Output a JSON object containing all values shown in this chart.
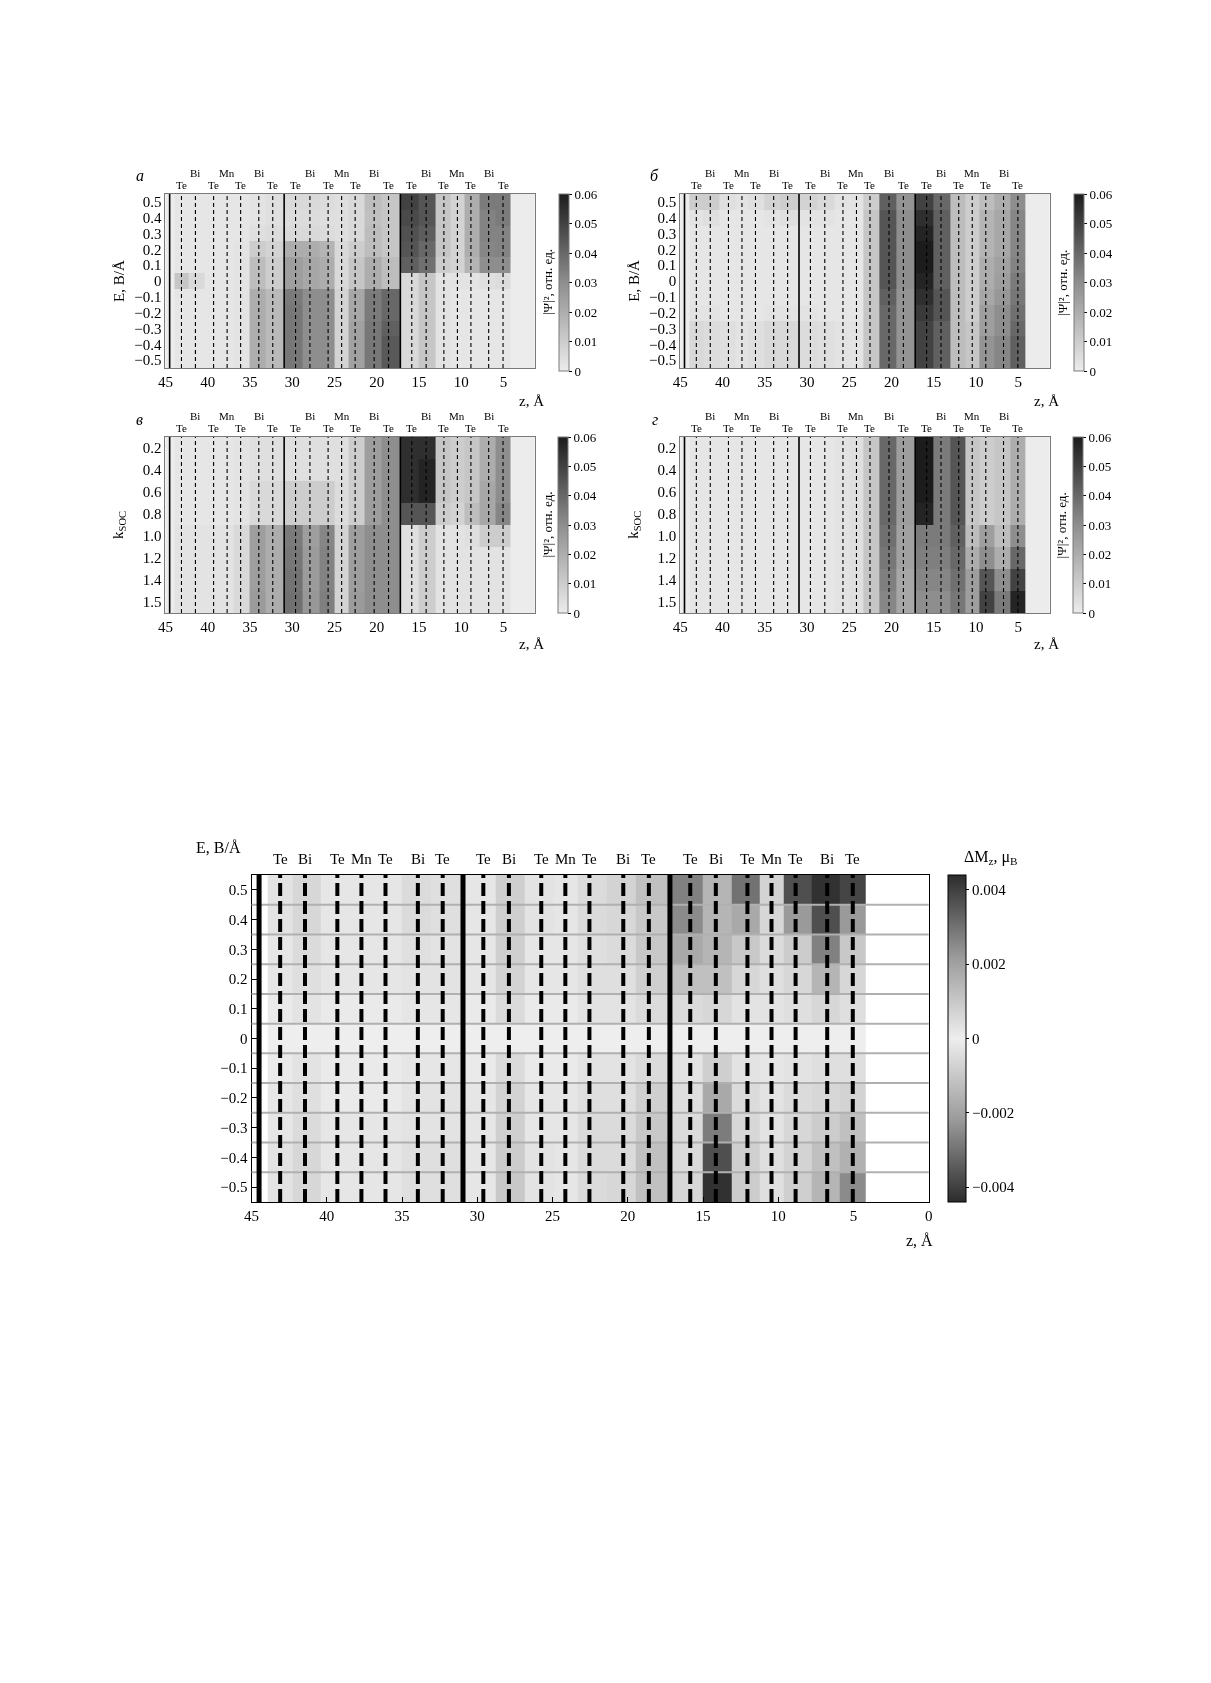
{
  "chart_data": [
    {
      "type": "heatmap",
      "title": "а",
      "xlabel": "z, Å",
      "ylabel": "E, В/Å",
      "clabel": "|Ψ|², отн. ед.",
      "x": [
        43.1,
        41.45,
        39.3,
        37.7,
        36.1,
        33.95,
        32.3,
        29.6,
        27.9,
        25.75,
        24.15,
        22.55,
        20.3,
        18.6,
        15.85,
        14.15,
        12.05,
        10.45,
        8.85,
        6.75,
        5.05
      ],
      "xlim": [
        45,
        1.3
      ],
      "xticks": [
        45,
        40,
        35,
        30,
        25,
        20,
        15,
        10,
        5
      ],
      "y_categories": [
        "0.5",
        "0.4",
        "0.3",
        "0.2",
        "0.1",
        "0",
        "−0.1",
        "−0.2",
        "−0.3",
        "−0.4",
        "−0.5"
      ],
      "cells": [
        [
          0.002,
          0.002,
          0.002,
          0.002,
          0.002,
          0.003,
          0.004,
          0.006,
          0.006,
          0.005,
          0.004,
          0.006,
          0.015,
          0.012,
          0.05,
          0.045,
          0.012,
          0.008,
          0.02,
          0.035,
          0.035
        ],
        [
          0.002,
          0.002,
          0.002,
          0.002,
          0.002,
          0.003,
          0.004,
          0.005,
          0.005,
          0.004,
          0.004,
          0.006,
          0.014,
          0.012,
          0.048,
          0.045,
          0.012,
          0.008,
          0.02,
          0.033,
          0.035
        ],
        [
          0.002,
          0.002,
          0.002,
          0.002,
          0.002,
          0.004,
          0.005,
          0.006,
          0.006,
          0.005,
          0.004,
          0.006,
          0.015,
          0.012,
          0.046,
          0.043,
          0.012,
          0.008,
          0.02,
          0.033,
          0.033
        ],
        [
          0.002,
          0.002,
          0.002,
          0.002,
          0.003,
          0.01,
          0.008,
          0.02,
          0.02,
          0.018,
          0.006,
          0.01,
          0.015,
          0.012,
          0.045,
          0.04,
          0.012,
          0.008,
          0.02,
          0.032,
          0.033
        ],
        [
          0.002,
          0.002,
          0.002,
          0.002,
          0.003,
          0.015,
          0.01,
          0.025,
          0.022,
          0.02,
          0.006,
          0.012,
          0.02,
          0.015,
          0.042,
          0.038,
          0.01,
          0.008,
          0.018,
          0.03,
          0.03
        ],
        [
          0.012,
          0.006,
          0.002,
          0.002,
          0.003,
          0.015,
          0.01,
          0.025,
          0.022,
          0.02,
          0.006,
          0.012,
          0.02,
          0.015,
          0.006,
          0.012,
          0.003,
          0.003,
          0.003,
          0.004,
          0.005
        ],
        [
          0.002,
          0.002,
          0.002,
          0.002,
          0.003,
          0.02,
          0.016,
          0.035,
          0.03,
          0.03,
          0.008,
          0.022,
          0.035,
          0.04,
          0.006,
          0.012,
          0.003,
          0.002,
          0.002,
          0.002,
          0.002
        ],
        [
          0.002,
          0.002,
          0.002,
          0.002,
          0.003,
          0.02,
          0.016,
          0.036,
          0.03,
          0.03,
          0.008,
          0.022,
          0.035,
          0.04,
          0.006,
          0.012,
          0.003,
          0.002,
          0.002,
          0.002,
          0.002
        ],
        [
          0.002,
          0.002,
          0.002,
          0.002,
          0.003,
          0.02,
          0.016,
          0.036,
          0.03,
          0.03,
          0.008,
          0.024,
          0.036,
          0.042,
          0.006,
          0.012,
          0.003,
          0.002,
          0.002,
          0.002,
          0.002
        ],
        [
          0.002,
          0.002,
          0.002,
          0.002,
          0.003,
          0.02,
          0.016,
          0.036,
          0.03,
          0.03,
          0.008,
          0.024,
          0.036,
          0.044,
          0.006,
          0.012,
          0.003,
          0.002,
          0.002,
          0.002,
          0.002
        ],
        [
          0.002,
          0.002,
          0.002,
          0.002,
          0.003,
          0.02,
          0.016,
          0.036,
          0.03,
          0.03,
          0.008,
          0.024,
          0.036,
          0.044,
          0.006,
          0.012,
          0.003,
          0.002,
          0.002,
          0.002,
          0.002
        ]
      ],
      "clim": [
        0,
        0.06
      ],
      "cticks": [
        0,
        0.01,
        0.02,
        0.03,
        0.04,
        0.05,
        0.06
      ],
      "ref_lines": [
        {
          "axis": "x",
          "value": 43.1,
          "label": "Te",
          "line_style": "dashed"
        },
        {
          "axis": "x",
          "value": 41.45,
          "label": "Bi",
          "line_style": "dashed"
        },
        {
          "axis": "x",
          "value": 39.3,
          "label": "Te",
          "line_style": "dashed"
        },
        {
          "axis": "x",
          "value": 37.7,
          "label": "Mn",
          "line_style": "dashed"
        },
        {
          "axis": "x",
          "value": 36.1,
          "label": "Te",
          "line_style": "dashed"
        },
        {
          "axis": "x",
          "value": 33.95,
          "label": "Bi",
          "line_style": "dashed"
        },
        {
          "axis": "x",
          "value": 32.3,
          "label": "Te",
          "line_style": "dashed"
        },
        {
          "axis": "x",
          "value": 29.6,
          "label": "Te",
          "line_style": "dashed"
        },
        {
          "axis": "x",
          "value": 27.9,
          "label": "Bi",
          "line_style": "dashed"
        },
        {
          "axis": "x",
          "value": 25.75,
          "label": "Te",
          "line_style": "dashed"
        },
        {
          "axis": "x",
          "value": 24.15,
          "label": "Mn",
          "line_style": "dashed"
        },
        {
          "axis": "x",
          "value": 22.55,
          "label": "Te",
          "line_style": "dashed"
        },
        {
          "axis": "x",
          "value": 20.3,
          "label": "Bi",
          "line_style": "dashed"
        },
        {
          "axis": "x",
          "value": 18.6,
          "label": "Te",
          "line_style": "dashed"
        },
        {
          "axis": "x",
          "value": 15.85,
          "label": "Te",
          "line_style": "dashed"
        },
        {
          "axis": "x",
          "value": 14.15,
          "label": "Bi",
          "line_style": "dashed"
        },
        {
          "axis": "x",
          "value": 12.05,
          "label": "Te",
          "line_style": "dashed"
        },
        {
          "axis": "x",
          "value": 10.45,
          "label": "Mn",
          "line_style": "dashed"
        },
        {
          "axis": "x",
          "value": 8.85,
          "label": "Te",
          "line_style": "dashed"
        },
        {
          "axis": "x",
          "value": 6.75,
          "label": "Bi",
          "line_style": "dashed"
        },
        {
          "axis": "x",
          "value": 5.05,
          "label": "Te",
          "line_style": "dashed"
        },
        {
          "axis": "x",
          "value": 44.5,
          "line_style": "solid"
        },
        {
          "axis": "x",
          "value": 30.95,
          "line_style": "solid"
        },
        {
          "axis": "x",
          "value": 17.2,
          "line_style": "solid"
        }
      ]
    },
    {
      "type": "heatmap",
      "title": "б",
      "xlabel": "z, Å",
      "ylabel": "E, В/Å",
      "clabel": "|Ψ|², отн. ед.",
      "x": [
        43.1,
        41.45,
        39.3,
        37.7,
        36.1,
        33.95,
        32.3,
        29.6,
        27.9,
        25.75,
        24.15,
        22.55,
        20.3,
        18.6,
        15.85,
        14.15,
        12.05,
        10.45,
        8.85,
        6.75,
        5.05
      ],
      "xlim": [
        45,
        1.3
      ],
      "xticks": [
        45,
        40,
        35,
        30,
        25,
        20,
        15,
        10,
        5
      ],
      "y_categories": [
        "0.5",
        "0.4",
        "0.3",
        "0.2",
        "0.1",
        "0",
        "−0.1",
        "−0.2",
        "−0.3",
        "−0.4",
        "−0.5"
      ],
      "cells": [
        [
          0.01,
          0.01,
          0.004,
          0.003,
          0.004,
          0.008,
          0.01,
          0.008,
          0.006,
          0.003,
          0.003,
          0.01,
          0.042,
          0.028,
          0.05,
          0.04,
          0.015,
          0.01,
          0.015,
          0.02,
          0.03
        ],
        [
          0.003,
          0.004,
          0.002,
          0.002,
          0.002,
          0.003,
          0.004,
          0.003,
          0.003,
          0.002,
          0.002,
          0.012,
          0.045,
          0.03,
          0.055,
          0.042,
          0.015,
          0.01,
          0.018,
          0.022,
          0.032
        ],
        [
          0.002,
          0.002,
          0.002,
          0.002,
          0.002,
          0.002,
          0.002,
          0.002,
          0.002,
          0.002,
          0.002,
          0.012,
          0.045,
          0.03,
          0.058,
          0.042,
          0.015,
          0.01,
          0.018,
          0.022,
          0.032
        ],
        [
          0.002,
          0.002,
          0.002,
          0.002,
          0.002,
          0.002,
          0.002,
          0.002,
          0.002,
          0.002,
          0.002,
          0.012,
          0.045,
          0.03,
          0.06,
          0.042,
          0.015,
          0.01,
          0.018,
          0.022,
          0.032
        ],
        [
          0.002,
          0.002,
          0.002,
          0.002,
          0.002,
          0.002,
          0.002,
          0.002,
          0.002,
          0.002,
          0.002,
          0.012,
          0.045,
          0.03,
          0.06,
          0.042,
          0.015,
          0.01,
          0.02,
          0.024,
          0.033
        ],
        [
          0.002,
          0.002,
          0.002,
          0.002,
          0.002,
          0.002,
          0.002,
          0.002,
          0.002,
          0.002,
          0.002,
          0.012,
          0.045,
          0.03,
          0.058,
          0.042,
          0.015,
          0.01,
          0.02,
          0.025,
          0.035
        ],
        [
          0.002,
          0.002,
          0.002,
          0.002,
          0.002,
          0.002,
          0.002,
          0.002,
          0.002,
          0.002,
          0.002,
          0.012,
          0.042,
          0.028,
          0.055,
          0.045,
          0.015,
          0.01,
          0.022,
          0.027,
          0.036
        ],
        [
          0.003,
          0.003,
          0.002,
          0.002,
          0.002,
          0.003,
          0.003,
          0.003,
          0.002,
          0.002,
          0.002,
          0.012,
          0.04,
          0.028,
          0.052,
          0.045,
          0.015,
          0.01,
          0.025,
          0.03,
          0.038
        ],
        [
          0.006,
          0.005,
          0.004,
          0.003,
          0.004,
          0.006,
          0.006,
          0.005,
          0.004,
          0.003,
          0.003,
          0.012,
          0.04,
          0.028,
          0.05,
          0.042,
          0.015,
          0.012,
          0.025,
          0.03,
          0.04
        ],
        [
          0.006,
          0.005,
          0.004,
          0.003,
          0.004,
          0.006,
          0.006,
          0.005,
          0.004,
          0.003,
          0.003,
          0.012,
          0.04,
          0.028,
          0.05,
          0.042,
          0.015,
          0.012,
          0.028,
          0.032,
          0.042
        ],
        [
          0.006,
          0.005,
          0.004,
          0.003,
          0.004,
          0.006,
          0.006,
          0.005,
          0.004,
          0.003,
          0.003,
          0.012,
          0.04,
          0.028,
          0.05,
          0.042,
          0.015,
          0.012,
          0.028,
          0.032,
          0.042
        ]
      ],
      "clim": [
        0,
        0.06
      ],
      "cticks": [
        0,
        0.01,
        0.02,
        0.03,
        0.04,
        0.05,
        0.06
      ],
      "ref_lines": [
        {
          "axis": "x",
          "value": 43.1,
          "label": "Te",
          "line_style": "dashed"
        },
        {
          "axis": "x",
          "value": 41.45,
          "label": "Bi",
          "line_style": "dashed"
        },
        {
          "axis": "x",
          "value": 39.3,
          "label": "Te",
          "line_style": "dashed"
        },
        {
          "axis": "x",
          "value": 37.7,
          "label": "Mn",
          "line_style": "dashed"
        },
        {
          "axis": "x",
          "value": 36.1,
          "label": "Te",
          "line_style": "dashed"
        },
        {
          "axis": "x",
          "value": 33.95,
          "label": "Bi",
          "line_style": "dashed"
        },
        {
          "axis": "x",
          "value": 32.3,
          "label": "Te",
          "line_style": "dashed"
        },
        {
          "axis": "x",
          "value": 29.6,
          "label": "Te",
          "line_style": "dashed"
        },
        {
          "axis": "x",
          "value": 27.9,
          "label": "Bi",
          "line_style": "dashed"
        },
        {
          "axis": "x",
          "value": 25.75,
          "label": "Te",
          "line_style": "dashed"
        },
        {
          "axis": "x",
          "value": 24.15,
          "label": "Mn",
          "line_style": "dashed"
        },
        {
          "axis": "x",
          "value": 22.55,
          "label": "Te",
          "line_style": "dashed"
        },
        {
          "axis": "x",
          "value": 20.3,
          "label": "Bi",
          "line_style": "dashed"
        },
        {
          "axis": "x",
          "value": 18.6,
          "label": "Te",
          "line_style": "dashed"
        },
        {
          "axis": "x",
          "value": 15.85,
          "label": "Te",
          "line_style": "dashed"
        },
        {
          "axis": "x",
          "value": 14.15,
          "label": "Bi",
          "line_style": "dashed"
        },
        {
          "axis": "x",
          "value": 12.05,
          "label": "Te",
          "line_style": "dashed"
        },
        {
          "axis": "x",
          "value": 10.45,
          "label": "Mn",
          "line_style": "dashed"
        },
        {
          "axis": "x",
          "value": 8.85,
          "label": "Te",
          "line_style": "dashed"
        },
        {
          "axis": "x",
          "value": 6.75,
          "label": "Bi",
          "line_style": "dashed"
        },
        {
          "axis": "x",
          "value": 5.05,
          "label": "Te",
          "line_style": "dashed"
        },
        {
          "axis": "x",
          "value": 44.5,
          "line_style": "solid"
        },
        {
          "axis": "x",
          "value": 30.95,
          "line_style": "solid"
        },
        {
          "axis": "x",
          "value": 17.2,
          "line_style": "solid"
        }
      ]
    },
    {
      "type": "heatmap",
      "title": "в",
      "xlabel": "z, Å",
      "ylabel": "k$_{SOC}$",
      "clabel": "|Ψ|², отн. ед.",
      "x": [
        43.1,
        41.45,
        39.3,
        37.7,
        36.1,
        33.95,
        32.3,
        29.6,
        27.9,
        25.75,
        24.15,
        22.55,
        20.3,
        18.6,
        15.85,
        14.15,
        12.05,
        10.45,
        8.85,
        6.75,
        5.05
      ],
      "xlim": [
        45,
        1.3
      ],
      "xticks": [
        45,
        40,
        35,
        30,
        25,
        20,
        15,
        10,
        5
      ],
      "y_categories": [
        "0.2",
        "0.4",
        "0.6",
        "0.8",
        "1.0",
        "1.2",
        "1.4",
        "1.5"
      ],
      "cells": [
        [
          0.002,
          0.002,
          0.002,
          0.002,
          0.003,
          0.004,
          0.004,
          0.004,
          0.004,
          0.004,
          0.004,
          0.01,
          0.025,
          0.03,
          0.055,
          0.055,
          0.012,
          0.01,
          0.012,
          0.02,
          0.03
        ],
        [
          0.002,
          0.002,
          0.002,
          0.002,
          0.003,
          0.004,
          0.004,
          0.004,
          0.004,
          0.004,
          0.004,
          0.01,
          0.025,
          0.03,
          0.055,
          0.058,
          0.012,
          0.01,
          0.012,
          0.02,
          0.03
        ],
        [
          0.002,
          0.002,
          0.002,
          0.002,
          0.003,
          0.006,
          0.006,
          0.01,
          0.01,
          0.01,
          0.005,
          0.01,
          0.025,
          0.03,
          0.055,
          0.058,
          0.012,
          0.01,
          0.012,
          0.022,
          0.03
        ],
        [
          0.002,
          0.002,
          0.002,
          0.002,
          0.003,
          0.006,
          0.006,
          0.01,
          0.01,
          0.01,
          0.005,
          0.01,
          0.025,
          0.03,
          0.045,
          0.045,
          0.01,
          0.008,
          0.015,
          0.022,
          0.032
        ],
        [
          0.003,
          0.003,
          0.003,
          0.003,
          0.006,
          0.025,
          0.02,
          0.035,
          0.025,
          0.032,
          0.008,
          0.025,
          0.03,
          0.03,
          0.004,
          0.01,
          0.003,
          0.003,
          0.004,
          0.01,
          0.01
        ],
        [
          0.003,
          0.003,
          0.003,
          0.003,
          0.006,
          0.025,
          0.02,
          0.036,
          0.026,
          0.033,
          0.008,
          0.025,
          0.03,
          0.03,
          0.004,
          0.01,
          0.003,
          0.003,
          0.003,
          0.003,
          0.003
        ],
        [
          0.003,
          0.003,
          0.003,
          0.003,
          0.006,
          0.025,
          0.02,
          0.037,
          0.026,
          0.033,
          0.008,
          0.025,
          0.03,
          0.03,
          0.004,
          0.01,
          0.003,
          0.003,
          0.003,
          0.003,
          0.003
        ],
        [
          0.003,
          0.003,
          0.003,
          0.003,
          0.006,
          0.026,
          0.02,
          0.038,
          0.027,
          0.034,
          0.008,
          0.026,
          0.03,
          0.03,
          0.004,
          0.01,
          0.003,
          0.003,
          0.003,
          0.003,
          0.003
        ]
      ],
      "clim": [
        0,
        0.06
      ],
      "cticks": [
        0,
        0.01,
        0.02,
        0.03,
        0.04,
        0.05,
        0.06
      ],
      "ref_lines": [
        {
          "axis": "x",
          "value": 43.1,
          "label": "Te",
          "line_style": "dashed"
        },
        {
          "axis": "x",
          "value": 41.45,
          "label": "Bi",
          "line_style": "dashed"
        },
        {
          "axis": "x",
          "value": 39.3,
          "label": "Te",
          "line_style": "dashed"
        },
        {
          "axis": "x",
          "value": 37.7,
          "label": "Mn",
          "line_style": "dashed"
        },
        {
          "axis": "x",
          "value": 36.1,
          "label": "Te",
          "line_style": "dashed"
        },
        {
          "axis": "x",
          "value": 33.95,
          "label": "Bi",
          "line_style": "dashed"
        },
        {
          "axis": "x",
          "value": 32.3,
          "label": "Te",
          "line_style": "dashed"
        },
        {
          "axis": "x",
          "value": 29.6,
          "label": "Te",
          "line_style": "dashed"
        },
        {
          "axis": "x",
          "value": 27.9,
          "label": "Bi",
          "line_style": "dashed"
        },
        {
          "axis": "x",
          "value": 25.75,
          "label": "Te",
          "line_style": "dashed"
        },
        {
          "axis": "x",
          "value": 24.15,
          "label": "Mn",
          "line_style": "dashed"
        },
        {
          "axis": "x",
          "value": 22.55,
          "label": "Te",
          "line_style": "dashed"
        },
        {
          "axis": "x",
          "value": 20.3,
          "label": "Bi",
          "line_style": "dashed"
        },
        {
          "axis": "x",
          "value": 18.6,
          "label": "Te",
          "line_style": "dashed"
        },
        {
          "axis": "x",
          "value": 15.85,
          "label": "Te",
          "line_style": "dashed"
        },
        {
          "axis": "x",
          "value": 14.15,
          "label": "Bi",
          "line_style": "dashed"
        },
        {
          "axis": "x",
          "value": 12.05,
          "label": "Te",
          "line_style": "dashed"
        },
        {
          "axis": "x",
          "value": 10.45,
          "label": "Mn",
          "line_style": "dashed"
        },
        {
          "axis": "x",
          "value": 8.85,
          "label": "Te",
          "line_style": "dashed"
        },
        {
          "axis": "x",
          "value": 6.75,
          "label": "Bi",
          "line_style": "dashed"
        },
        {
          "axis": "x",
          "value": 5.05,
          "label": "Te",
          "line_style": "dashed"
        },
        {
          "axis": "x",
          "value": 44.5,
          "line_style": "solid"
        },
        {
          "axis": "x",
          "value": 30.95,
          "line_style": "solid"
        },
        {
          "axis": "x",
          "value": 17.2,
          "line_style": "solid"
        }
      ]
    },
    {
      "type": "heatmap",
      "title": "г",
      "xlabel": "z, Å",
      "ylabel": "k$_{SOC}$",
      "clabel": "|Ψ|², отн. ед.",
      "x": [
        43.1,
        41.45,
        39.3,
        37.7,
        36.1,
        33.95,
        32.3,
        29.6,
        27.9,
        25.75,
        24.15,
        22.55,
        20.3,
        18.6,
        15.85,
        14.15,
        12.05,
        10.45,
        8.85,
        6.75,
        5.05
      ],
      "xlim": [
        45,
        1.3
      ],
      "xticks": [
        45,
        40,
        35,
        30,
        25,
        20,
        15,
        10,
        5
      ],
      "y_categories": [
        "0.2",
        "0.4",
        "0.6",
        "0.8",
        "1.0",
        "1.2",
        "1.4",
        "1.5"
      ],
      "cells": [
        [
          0.002,
          0.002,
          0.002,
          0.002,
          0.002,
          0.002,
          0.002,
          0.002,
          0.002,
          0.003,
          0.004,
          0.012,
          0.04,
          0.025,
          0.06,
          0.035,
          0.045,
          0.012,
          0.01,
          0.012,
          0.02
        ],
        [
          0.002,
          0.002,
          0.002,
          0.002,
          0.002,
          0.002,
          0.002,
          0.002,
          0.002,
          0.003,
          0.004,
          0.012,
          0.04,
          0.025,
          0.06,
          0.035,
          0.045,
          0.012,
          0.01,
          0.012,
          0.02
        ],
        [
          0.002,
          0.002,
          0.002,
          0.002,
          0.002,
          0.002,
          0.002,
          0.002,
          0.002,
          0.003,
          0.004,
          0.012,
          0.04,
          0.025,
          0.06,
          0.035,
          0.045,
          0.012,
          0.01,
          0.012,
          0.02
        ],
        [
          0.002,
          0.002,
          0.002,
          0.002,
          0.002,
          0.002,
          0.002,
          0.002,
          0.002,
          0.003,
          0.004,
          0.012,
          0.04,
          0.025,
          0.058,
          0.035,
          0.045,
          0.012,
          0.01,
          0.012,
          0.02
        ],
        [
          0.002,
          0.002,
          0.002,
          0.002,
          0.002,
          0.002,
          0.002,
          0.002,
          0.002,
          0.003,
          0.004,
          0.012,
          0.038,
          0.024,
          0.035,
          0.035,
          0.042,
          0.015,
          0.025,
          0.015,
          0.03
        ],
        [
          0.002,
          0.002,
          0.002,
          0.002,
          0.002,
          0.002,
          0.002,
          0.002,
          0.002,
          0.003,
          0.004,
          0.012,
          0.036,
          0.024,
          0.034,
          0.034,
          0.04,
          0.02,
          0.03,
          0.02,
          0.04
        ],
        [
          0.002,
          0.002,
          0.002,
          0.002,
          0.002,
          0.002,
          0.002,
          0.002,
          0.002,
          0.003,
          0.004,
          0.012,
          0.034,
          0.022,
          0.032,
          0.032,
          0.038,
          0.025,
          0.045,
          0.03,
          0.05
        ],
        [
          0.002,
          0.002,
          0.002,
          0.002,
          0.002,
          0.002,
          0.002,
          0.002,
          0.002,
          0.003,
          0.004,
          0.012,
          0.032,
          0.022,
          0.03,
          0.03,
          0.036,
          0.025,
          0.05,
          0.035,
          0.058
        ]
      ],
      "clim": [
        0,
        0.06
      ],
      "cticks": [
        0,
        0.01,
        0.02,
        0.03,
        0.04,
        0.05,
        0.06
      ],
      "ref_lines": [
        {
          "axis": "x",
          "value": 43.1,
          "label": "Te",
          "line_style": "dashed"
        },
        {
          "axis": "x",
          "value": 41.45,
          "label": "Bi",
          "line_style": "dashed"
        },
        {
          "axis": "x",
          "value": 39.3,
          "label": "Te",
          "line_style": "dashed"
        },
        {
          "axis": "x",
          "value": 37.7,
          "label": "Mn",
          "line_style": "dashed"
        },
        {
          "axis": "x",
          "value": 36.1,
          "label": "Te",
          "line_style": "dashed"
        },
        {
          "axis": "x",
          "value": 33.95,
          "label": "Bi",
          "line_style": "dashed"
        },
        {
          "axis": "x",
          "value": 32.3,
          "label": "Te",
          "line_style": "dashed"
        },
        {
          "axis": "x",
          "value": 29.6,
          "label": "Te",
          "line_style": "dashed"
        },
        {
          "axis": "x",
          "value": 27.9,
          "label": "Bi",
          "line_style": "dashed"
        },
        {
          "axis": "x",
          "value": 25.75,
          "label": "Te",
          "line_style": "dashed"
        },
        {
          "axis": "x",
          "value": 24.15,
          "label": "Mn",
          "line_style": "dashed"
        },
        {
          "axis": "x",
          "value": 22.55,
          "label": "Te",
          "line_style": "dashed"
        },
        {
          "axis": "x",
          "value": 20.3,
          "label": "Bi",
          "line_style": "dashed"
        },
        {
          "axis": "x",
          "value": 18.6,
          "label": "Te",
          "line_style": "dashed"
        },
        {
          "axis": "x",
          "value": 15.85,
          "label": "Te",
          "line_style": "dashed"
        },
        {
          "axis": "x",
          "value": 14.15,
          "label": "Bi",
          "line_style": "dashed"
        },
        {
          "axis": "x",
          "value": 12.05,
          "label": "Te",
          "line_style": "dashed"
        },
        {
          "axis": "x",
          "value": 10.45,
          "label": "Mn",
          "line_style": "dashed"
        },
        {
          "axis": "x",
          "value": 8.85,
          "label": "Te",
          "line_style": "dashed"
        },
        {
          "axis": "x",
          "value": 6.75,
          "label": "Bi",
          "line_style": "dashed"
        },
        {
          "axis": "x",
          "value": 5.05,
          "label": "Te",
          "line_style": "dashed"
        },
        {
          "axis": "x",
          "value": 44.5,
          "line_style": "solid"
        },
        {
          "axis": "x",
          "value": 30.95,
          "line_style": "solid"
        },
        {
          "axis": "x",
          "value": 17.2,
          "line_style": "solid"
        }
      ]
    },
    {
      "type": "heatmap",
      "xlabel": "z, Å",
      "ylabel": "E, В/Å",
      "clabel": "ΔM$_{z}$, μ$_{B}$",
      "x": [
        43.1,
        41.45,
        39.3,
        37.7,
        36.1,
        33.95,
        32.3,
        29.6,
        27.9,
        25.75,
        24.15,
        22.55,
        20.3,
        18.6,
        15.85,
        14.15,
        12.05,
        10.45,
        8.85,
        6.75,
        5.05
      ],
      "xlim": [
        45,
        0
      ],
      "xticks": [
        45,
        40,
        35,
        30,
        25,
        20,
        15,
        10,
        5,
        0
      ],
      "y_categories": [
        "0.5",
        "0.4",
        "0.3",
        "0.2",
        "0.1",
        "0",
        "−0.1",
        "−0.2",
        "−0.3",
        "−0.4",
        "−0.5"
      ],
      "grid": "y",
      "cells": [
        [
          0.0003,
          0.0006,
          0.0002,
          0.0002,
          0.0002,
          0.0005,
          0.0004,
          0.0002,
          0.0008,
          0.0003,
          0.0002,
          0.0005,
          0.0007,
          0.0012,
          0.0027,
          0.0015,
          0.003,
          0.0007,
          0.0037,
          0.0043,
          0.0039
        ],
        [
          0.0003,
          0.0006,
          0.0002,
          0.0002,
          0.0002,
          0.0005,
          0.0004,
          0.0002,
          0.0008,
          0.0003,
          0.0002,
          0.0005,
          0.0006,
          0.001,
          0.0025,
          0.0015,
          0.0018,
          0.0006,
          0.0022,
          0.0037,
          0.0022
        ],
        [
          0.0002,
          0.0005,
          0.0002,
          0.0002,
          0.0002,
          0.0004,
          0.0003,
          0.0002,
          0.0008,
          0.0002,
          0.0002,
          0.0004,
          0.0005,
          0.001,
          0.0018,
          0.0015,
          0.001,
          0.0005,
          0.0009,
          0.0027,
          0.001
        ],
        [
          0.0002,
          0.0004,
          0.0002,
          0.0002,
          0.0002,
          0.0003,
          0.0003,
          0.0002,
          0.0007,
          0.0002,
          0.0002,
          0.0004,
          0.0004,
          0.0008,
          0.0012,
          0.0012,
          0.0006,
          0.0004,
          0.0006,
          0.0015,
          0.0006
        ],
        [
          0.0001,
          0.0003,
          0.0001,
          0.0001,
          0.0001,
          0.0002,
          0.0002,
          0.0001,
          0.0005,
          0.0001,
          0.0001,
          0.0003,
          0.0003,
          0.0005,
          0.0005,
          0.0006,
          0.0003,
          0.0003,
          0.0004,
          0.0006,
          0.0004
        ],
        [
          0,
          0,
          0,
          0,
          0,
          0,
          0,
          0,
          0,
          0,
          0,
          0,
          0,
          0,
          0,
          0,
          0,
          0,
          0,
          0,
          0
        ],
        [
          -0.0001,
          -0.0003,
          -0.0001,
          -0.0001,
          -0.0001,
          -0.0002,
          -0.0002,
          -0.0001,
          -0.0005,
          -0.0001,
          -0.0001,
          -0.0003,
          -0.0003,
          -0.0005,
          -0.0003,
          -0.0008,
          -0.0003,
          -0.0002,
          -0.0003,
          -0.0004,
          -0.0004
        ],
        [
          -0.0002,
          -0.0004,
          -0.0001,
          -0.0001,
          -0.0001,
          -0.0003,
          -0.0003,
          -0.0002,
          -0.0007,
          -0.0002,
          -0.0002,
          -0.0004,
          -0.0004,
          -0.0008,
          -0.0004,
          -0.0018,
          -0.0005,
          -0.0003,
          -0.0005,
          -0.0006,
          -0.0007
        ],
        [
          -0.0002,
          -0.0005,
          -0.0002,
          -0.0002,
          -0.0002,
          -0.0003,
          -0.0003,
          -0.0002,
          -0.0008,
          -0.0002,
          -0.0002,
          -0.0005,
          -0.0005,
          -0.001,
          -0.0005,
          -0.0028,
          -0.0006,
          -0.0003,
          -0.0006,
          -0.0009,
          -0.0012
        ],
        [
          -0.0003,
          -0.0006,
          -0.0002,
          -0.0002,
          -0.0002,
          -0.0004,
          -0.0004,
          -0.0002,
          -0.0009,
          -0.0003,
          -0.0002,
          -0.0005,
          -0.0005,
          -0.0012,
          -0.0005,
          -0.0037,
          -0.0008,
          -0.0004,
          -0.0007,
          -0.0012,
          -0.0016
        ],
        [
          -0.0003,
          -0.0006,
          -0.0002,
          -0.0002,
          -0.0002,
          -0.0004,
          -0.0004,
          -0.0002,
          -0.001,
          -0.0003,
          -0.0002,
          -0.0005,
          -0.0006,
          -0.0012,
          -0.0006,
          -0.0043,
          -0.0009,
          -0.0004,
          -0.0008,
          -0.0015,
          -0.0025
        ]
      ],
      "clim": [
        -0.0044,
        0.0044
      ],
      "cticks": [
        {
          "value": -0.004,
          "label": "−0.004"
        },
        {
          "value": -0.002,
          "label": "−0.002"
        },
        0,
        0.002,
        0.004
      ],
      "ref_lines": [
        {
          "axis": "x",
          "value": 43.1,
          "label": "Te",
          "line_style": "dashed"
        },
        {
          "axis": "x",
          "value": 41.45,
          "label": "Bi",
          "line_style": "dashed"
        },
        {
          "axis": "x",
          "value": 39.3,
          "label": "Te",
          "line_style": "dashed"
        },
        {
          "axis": "x",
          "value": 37.7,
          "label": "Mn",
          "line_style": "dashed"
        },
        {
          "axis": "x",
          "value": 36.1,
          "label": "Te",
          "line_style": "dashed"
        },
        {
          "axis": "x",
          "value": 33.95,
          "label": "Bi",
          "line_style": "dashed"
        },
        {
          "axis": "x",
          "value": 32.3,
          "label": "Te",
          "line_style": "dashed"
        },
        {
          "axis": "x",
          "value": 29.6,
          "label": "Te",
          "line_style": "dashed"
        },
        {
          "axis": "x",
          "value": 27.9,
          "label": "Bi",
          "line_style": "dashed"
        },
        {
          "axis": "x",
          "value": 25.75,
          "label": "Te",
          "line_style": "dashed"
        },
        {
          "axis": "x",
          "value": 24.15,
          "label": "Mn",
          "line_style": "dashed"
        },
        {
          "axis": "x",
          "value": 22.55,
          "label": "Te",
          "line_style": "dashed"
        },
        {
          "axis": "x",
          "value": 20.3,
          "label": "Bi",
          "line_style": "dashed"
        },
        {
          "axis": "x",
          "value": 18.6,
          "label": "Te",
          "line_style": "dashed"
        },
        {
          "axis": "x",
          "value": 15.85,
          "label": "Te",
          "line_style": "dashed"
        },
        {
          "axis": "x",
          "value": 14.15,
          "label": "Bi",
          "line_style": "dashed"
        },
        {
          "axis": "x",
          "value": 12.05,
          "label": "Te",
          "line_style": "dashed"
        },
        {
          "axis": "x",
          "value": 10.45,
          "label": "Mn",
          "line_style": "dashed"
        },
        {
          "axis": "x",
          "value": 8.85,
          "label": "Te",
          "line_style": "dashed"
        },
        {
          "axis": "x",
          "value": 6.75,
          "label": "Bi",
          "line_style": "dashed"
        },
        {
          "axis": "x",
          "value": 5.05,
          "label": "Te",
          "line_style": "dashed"
        },
        {
          "axis": "x",
          "value": 44.5,
          "line_style": "solid"
        },
        {
          "axis": "x",
          "value": 30.95,
          "line_style": "solid"
        },
        {
          "axis": "x",
          "value": 17.2,
          "line_style": "solid"
        }
      ]
    }
  ]
}
